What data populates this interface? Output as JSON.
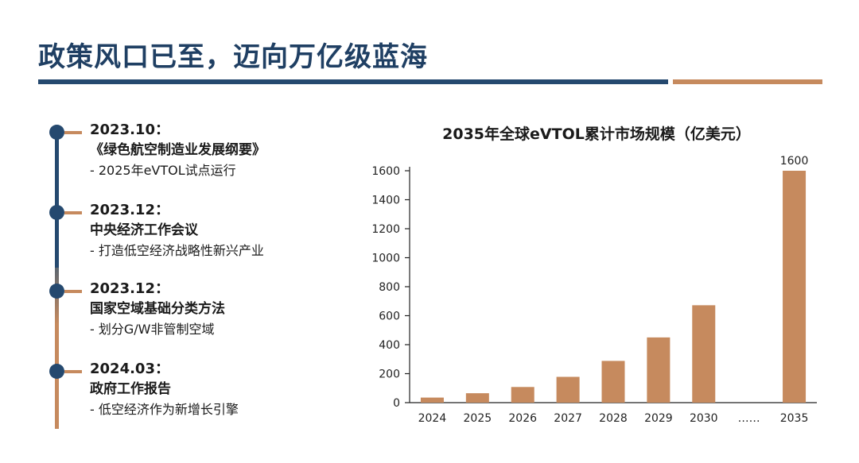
{
  "header": {
    "title": "政策风口已至，迈向万亿级蓝海"
  },
  "timeline": [
    {
      "date": "2023.10：",
      "event": "《绿色航空制造业发展纲要》",
      "detail": "- 2025年eVTOL试点运行"
    },
    {
      "date": "2023.12：",
      "event": "中央经济工作会议",
      "detail": "- 打造低空经济战略性新兴产业"
    },
    {
      "date": "2023.12：",
      "event": "国家空域基础分类方法",
      "detail": "- 划分G/W非管制空域"
    },
    {
      "date": "2024.03：",
      "event": "政府工作报告",
      "detail": "- 低空经济作为新增长引擎"
    }
  ],
  "colors": {
    "accent_blue": "#25496f",
    "accent_orange": "#c68a5e",
    "bar": "#c68a5e"
  },
  "chart_data": {
    "type": "bar",
    "title": "2035年全球eVTOL累计市场规模（亿美元）",
    "categories": [
      "2024",
      "2025",
      "2026",
      "2027",
      "2028",
      "2029",
      "2030",
      "……",
      "2035"
    ],
    "values": [
      35,
      65,
      108,
      178,
      288,
      450,
      672,
      null,
      1600
    ],
    "data_labels": [
      null,
      null,
      null,
      null,
      null,
      null,
      null,
      null,
      "1600"
    ],
    "yticks": [
      0,
      200,
      400,
      600,
      800,
      1000,
      1200,
      1400,
      1600
    ],
    "ylim": [
      0,
      1600
    ],
    "xlabel": "",
    "ylabel": "",
    "grid": false,
    "legend": "none"
  }
}
